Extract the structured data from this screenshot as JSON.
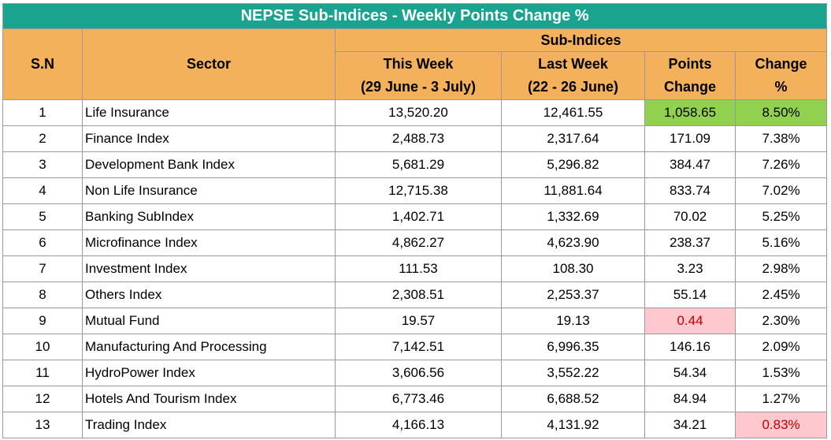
{
  "title": "NEPSE Sub-Indices - Weekly Points Change %",
  "headers": {
    "sn": "S.N",
    "sector": "Sector",
    "sub_indices": "Sub-Indices",
    "this_week": "This Week",
    "this_week_range": "(29 June - 3 July)",
    "last_week": "Last Week",
    "last_week_range": "(22 - 26 June)",
    "points_change_1": "Points",
    "points_change_2": "Change",
    "change_pct_1": "Change",
    "change_pct_2": "%"
  },
  "highlight_colors": {
    "max": "#92d050",
    "min": "#ffc7ce",
    "min_text": "#c00000"
  },
  "rows": [
    {
      "sn": "1",
      "sector": "Life Insurance",
      "this_week": "13,520.20",
      "last_week": "12,461.55",
      "points_change": "1,058.65",
      "change_pct": "8.50%"
    },
    {
      "sn": "2",
      "sector": "Finance Index",
      "this_week": "2,488.73",
      "last_week": "2,317.64",
      "points_change": "171.09",
      "change_pct": "7.38%"
    },
    {
      "sn": "3",
      "sector": "Development Bank Index",
      "this_week": "5,681.29",
      "last_week": "5,296.82",
      "points_change": "384.47",
      "change_pct": "7.26%"
    },
    {
      "sn": "4",
      "sector": "Non Life Insurance",
      "this_week": "12,715.38",
      "last_week": "11,881.64",
      "points_change": "833.74",
      "change_pct": "7.02%"
    },
    {
      "sn": "5",
      "sector": "Banking SubIndex",
      "this_week": "1,402.71",
      "last_week": "1,332.69",
      "points_change": "70.02",
      "change_pct": "5.25%"
    },
    {
      "sn": "6",
      "sector": "Microfinance Index",
      "this_week": "4,862.27",
      "last_week": "4,623.90",
      "points_change": "238.37",
      "change_pct": "5.16%"
    },
    {
      "sn": "7",
      "sector": "Investment Index",
      "this_week": "111.53",
      "last_week": "108.30",
      "points_change": "3.23",
      "change_pct": "2.98%"
    },
    {
      "sn": "8",
      "sector": "Others Index",
      "this_week": "2,308.51",
      "last_week": "2,253.37",
      "points_change": "55.14",
      "change_pct": "2.45%"
    },
    {
      "sn": "9",
      "sector": "Mutual Fund",
      "this_week": "19.57",
      "last_week": "19.13",
      "points_change": "0.44",
      "change_pct": "2.30%"
    },
    {
      "sn": "10",
      "sector": "Manufacturing And Processing",
      "this_week": "7,142.51",
      "last_week": "6,996.35",
      "points_change": "146.16",
      "change_pct": "2.09%"
    },
    {
      "sn": "11",
      "sector": "HydroPower Index",
      "this_week": "3,606.56",
      "last_week": "3,552.22",
      "points_change": "54.34",
      "change_pct": "1.53%"
    },
    {
      "sn": "12",
      "sector": "Hotels And Tourism Index",
      "this_week": "6,773.46",
      "last_week": "6,688.52",
      "points_change": "84.94",
      "change_pct": "1.27%"
    },
    {
      "sn": "13",
      "sector": "Trading Index",
      "this_week": "4,166.13",
      "last_week": "4,131.92",
      "points_change": "34.21",
      "change_pct": "0.83%"
    }
  ]
}
